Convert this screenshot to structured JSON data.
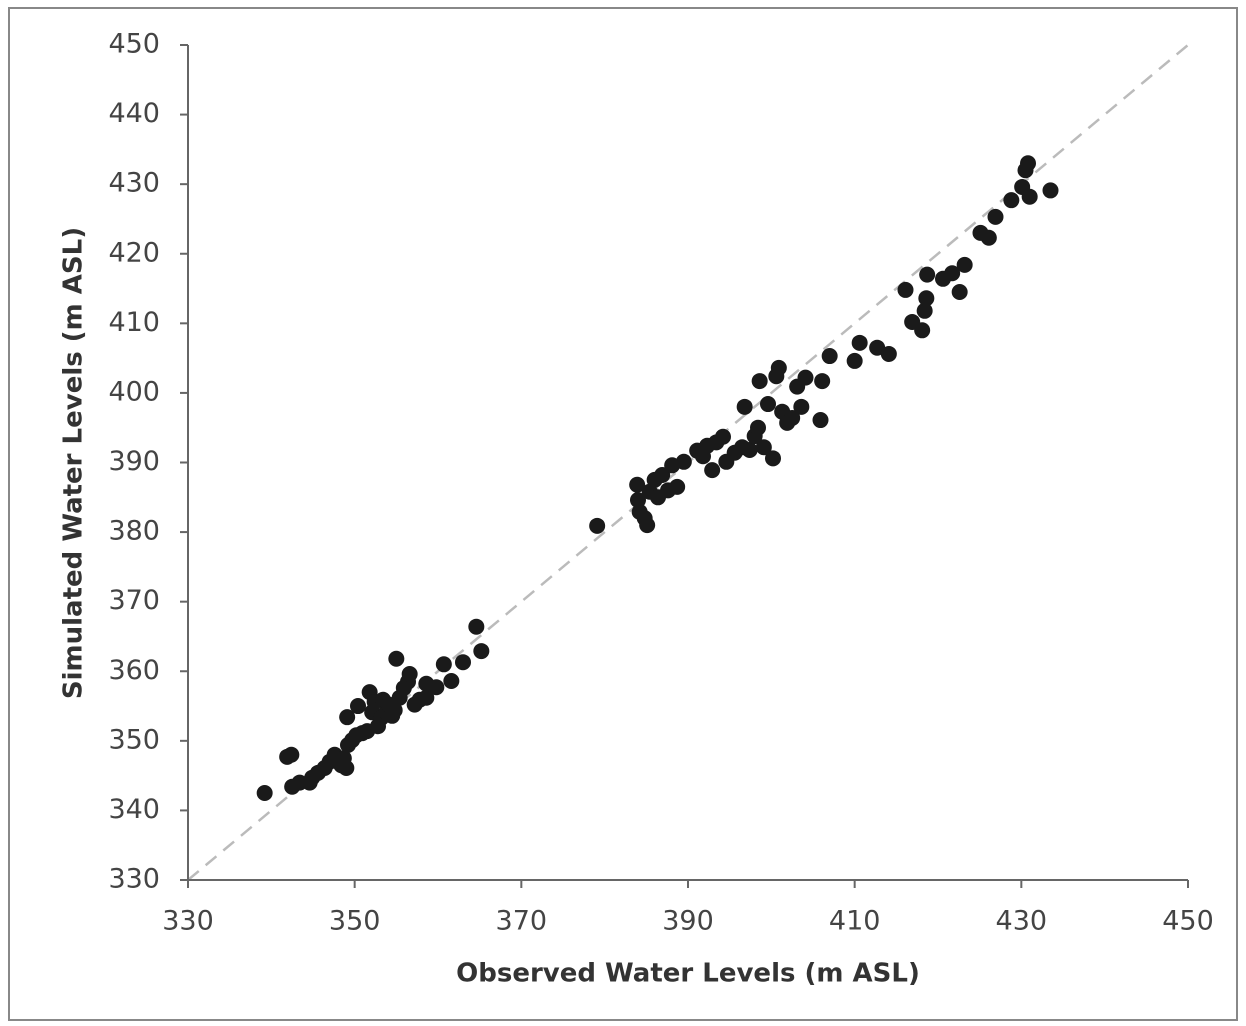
{
  "chart_data": {
    "type": "scatter",
    "x_label": "Observed Water Levels (m ASL)",
    "y_label": "Simulated Water Levels (m ASL)",
    "x": [
      339.2,
      341.9,
      342.4,
      342.5,
      343.4,
      344.6,
      344.9,
      345.6,
      346.4,
      347.0,
      347.6,
      348.0,
      348.4,
      348.7,
      349.0,
      349.2,
      349.1,
      349.7,
      350.2,
      350.4,
      350.9,
      351.5,
      351.8,
      352.1,
      352.4,
      352.8,
      353.2,
      353.4,
      353.8,
      354.1,
      354.5,
      354.8,
      355.0,
      355.4,
      355.9,
      356.4,
      356.6,
      357.2,
      357.8,
      358.6,
      358.6,
      359.8,
      360.7,
      361.6,
      363.0,
      364.6,
      365.2,
      379.1,
      383.9,
      384.0,
      384.2,
      384.8,
      385.1,
      385.4,
      386.0,
      386.4,
      386.9,
      387.6,
      388.1,
      388.7,
      389.5,
      391.1,
      391.8,
      392.3,
      392.9,
      393.4,
      394.2,
      394.6,
      395.6,
      396.5,
      396.8,
      397.4,
      398.0,
      398.4,
      398.6,
      399.1,
      399.6,
      400.2,
      400.6,
      400.9,
      401.3,
      401.9,
      402.5,
      403.1,
      403.6,
      404.1,
      405.9,
      406.1,
      407.0,
      410.0,
      410.6,
      412.7,
      414.1,
      416.1,
      416.9,
      418.1,
      418.4,
      418.6,
      418.7,
      420.6,
      421.7,
      422.6,
      423.2,
      425.1,
      426.1,
      426.9,
      428.8,
      430.1,
      430.5,
      430.8,
      431.0,
      433.5
    ],
    "values": [
      342.5,
      347.7,
      348.0,
      343.4,
      344.0,
      344.0,
      344.7,
      345.4,
      346.1,
      347.0,
      348.0,
      347.2,
      346.5,
      347.5,
      346.1,
      349.4,
      353.4,
      350.1,
      350.8,
      355.0,
      351.1,
      351.4,
      357.0,
      354.1,
      355.6,
      352.1,
      353.3,
      355.9,
      354.1,
      355.2,
      353.6,
      354.4,
      361.8,
      356.2,
      357.6,
      358.5,
      359.6,
      355.2,
      355.9,
      356.2,
      358.2,
      357.7,
      361.0,
      358.6,
      361.3,
      366.4,
      362.9,
      380.9,
      386.8,
      384.6,
      382.9,
      382.0,
      381.0,
      385.8,
      387.5,
      385.0,
      388.2,
      386.0,
      389.6,
      386.5,
      390.1,
      391.7,
      390.9,
      392.4,
      388.9,
      392.9,
      393.7,
      390.1,
      391.4,
      392.2,
      398.0,
      391.8,
      393.8,
      395.0,
      401.7,
      392.2,
      398.4,
      390.6,
      402.4,
      403.6,
      397.3,
      395.7,
      396.4,
      400.9,
      398.0,
      402.2,
      396.1,
      401.7,
      405.3,
      404.6,
      407.2,
      406.5,
      405.6,
      414.8,
      410.2,
      409.0,
      411.8,
      413.6,
      417.0,
      416.4,
      417.2,
      414.5,
      418.4,
      423.0,
      422.3,
      425.3,
      427.7,
      429.6,
      432.0,
      433.0,
      428.2,
      429.1
    ],
    "color": "#1a1a1a",
    "xlim": [
      330,
      450
    ],
    "ylim": [
      330,
      450
    ],
    "xticks": [
      330,
      350,
      370,
      390,
      410,
      430,
      450
    ],
    "yticks": [
      330,
      340,
      350,
      360,
      370,
      380,
      390,
      400,
      410,
      420,
      430,
      440,
      450
    ],
    "reference_line": true,
    "grid": false
  }
}
